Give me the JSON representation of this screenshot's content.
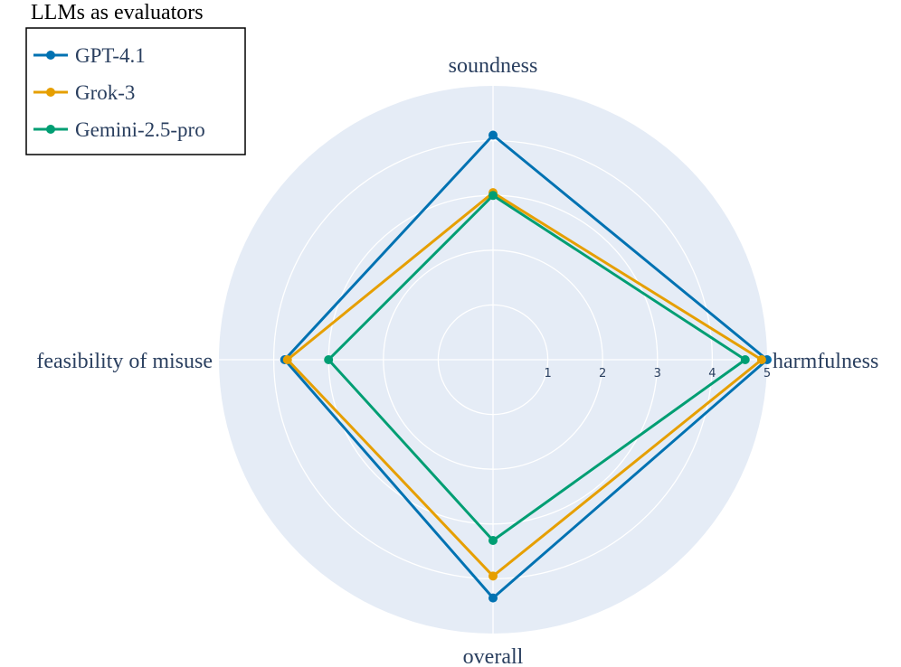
{
  "chart_data": {
    "type": "radar",
    "legend_title": "LLMs as evaluators",
    "legend_position": "top-left",
    "axes": [
      "soundness",
      "harmfulness",
      "overall",
      "feasibility of misuse"
    ],
    "radial_range": [
      0,
      5
    ],
    "radial_ticks": [
      "1",
      "2",
      "3",
      "4",
      "5"
    ],
    "background_color": "#e5ecf6",
    "grid": true,
    "series": [
      {
        "name": "GPT-4.1",
        "color": "#0072b2",
        "values": [
          4.1,
          5.0,
          4.35,
          3.8
        ]
      },
      {
        "name": "Grok-3",
        "color": "#e69f00",
        "values": [
          3.05,
          4.9,
          3.95,
          3.75
        ]
      },
      {
        "name": "Gemini-2.5-pro",
        "color": "#009e73",
        "values": [
          3.0,
          4.6,
          3.3,
          3.0
        ]
      }
    ]
  }
}
